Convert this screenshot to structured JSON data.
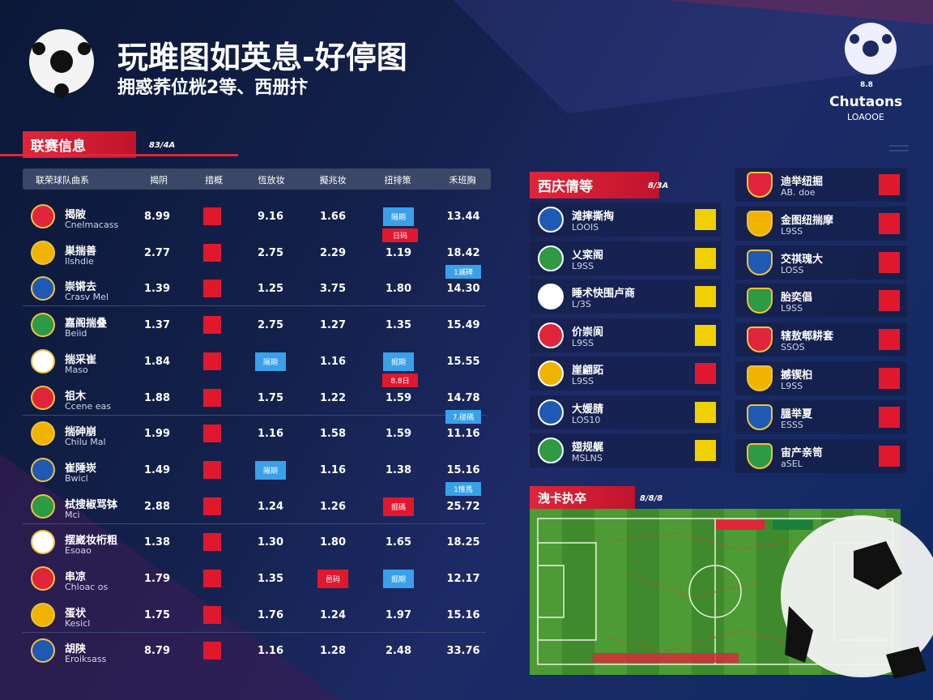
{
  "header": {
    "title": "玩雎图如英息-好停图",
    "subtitle": "拥惑荞位桄2等、西册抃"
  },
  "logo": {
    "badge": "8.8",
    "name": "Chutaons",
    "sub": "LOAOOE"
  },
  "league": {
    "title": "联赛信息",
    "tag": "83/4A",
    "columns": [
      "联荣球队曲系",
      "揭阴",
      "措概",
      "恆放妆",
      "擬兆妆",
      "扭排策",
      "禾班胸"
    ],
    "rows": [
      {
        "name": "揭陂",
        "sub": "Cnelmacass",
        "cells": [
          "8.99",
          "9.16",
          "1.66",
          {
            "tag": "陽期",
            "tone": "blue"
          },
          "13.44"
        ],
        "note": {
          "text": "日码",
          "tone": "red"
        }
      },
      {
        "name": "巣揣善",
        "sub": "Ilshdie",
        "cells": [
          "2.77",
          "2.75",
          "2.29",
          "1.19",
          "18.42"
        ],
        "note": {
          "text": "1滅碑",
          "tone": "blue"
        }
      },
      {
        "name": "崇锵去",
        "sub": "Crasv Mel",
        "cells": [
          "1.39",
          "1.25",
          "3.75",
          "1.80",
          "14.30"
        ]
      },
      {
        "name": "嘉阁揣叠",
        "sub": "Beiid",
        "cells": [
          "1.37",
          "2.75",
          "1.27",
          "1.35",
          "15.49"
        ]
      },
      {
        "name": "揣采崔",
        "sub": "Maso",
        "cells": [
          "1.84",
          {
            "tag": "陽期",
            "tone": "blue"
          },
          "1.16",
          {
            "tag": "掘期",
            "tone": "blue"
          },
          "15.55"
        ],
        "note": {
          "text": "8.8日",
          "tone": "red"
        }
      },
      {
        "name": "祖木",
        "sub": "Ccene eas",
        "cells": [
          "1.88",
          "1.75",
          "1.22",
          "1.59",
          "14.78"
        ],
        "note": {
          "text": "7.碰碼",
          "tone": "blue"
        }
      },
      {
        "name": "揣砷崩",
        "sub": "Chilu Mal",
        "cells": [
          "1.99",
          "1.16",
          "1.58",
          "1.59",
          "11.16"
        ]
      },
      {
        "name": "崔陲崁",
        "sub": "Bwicl",
        "cells": [
          "1.49",
          {
            "tag": "陽期",
            "tone": "blue"
          },
          "1.16",
          "1.38",
          "15.16"
        ],
        "note": {
          "text": "1惟馬",
          "tone": "blue"
        }
      },
      {
        "name": "栻搜椒骂钵",
        "sub": "Mci",
        "cells": [
          "2.88",
          "1.24",
          "1.26",
          {
            "tag": "掘碼",
            "tone": "red"
          },
          "25.72"
        ]
      },
      {
        "name": "摆崴妆桁粗",
        "sub": "Esoao",
        "cells": [
          "1.38",
          "1.30",
          "1.80",
          "1.65",
          "18.25"
        ]
      },
      {
        "name": "串凉",
        "sub": "Chloac os",
        "cells": [
          "1.79",
          "1.35",
          {
            "tag": "邑码",
            "tone": "red"
          },
          {
            "tag": "掘期",
            "tone": "blue"
          },
          "12.17"
        ]
      },
      {
        "name": "蛋状",
        "sub": "Kesicl",
        "cells": [
          "1.75",
          "1.76",
          "1.24",
          "1.97",
          "15.16"
        ]
      },
      {
        "name": "胡陕",
        "sub": "Eroiksass",
        "cells": [
          "8.79",
          "1.16",
          "1.28",
          "2.48",
          "33.76"
        ]
      }
    ]
  },
  "teams": {
    "title": "西庆倩等",
    "tag": "8/3A",
    "rows": [
      {
        "name": "滩摔撕掏",
        "sub": "LOOIS"
      },
      {
        "name": "乂寀阁",
        "sub": "L9SS"
      },
      {
        "name": "睡术快围卢商",
        "sub": "L/3S"
      },
      {
        "name": "价崇阆",
        "sub": "L9SS"
      },
      {
        "name": "崖翩跖",
        "sub": "L9SS"
      },
      {
        "name": "大媛腈",
        "sub": "LOS10"
      },
      {
        "name": "翅规艉",
        "sub": "MSLNS"
      }
    ]
  },
  "clubs": {
    "rows": [
      {
        "name": "迪举纽掘",
        "sub": "AB. doe"
      },
      {
        "name": "金图纽揣摩",
        "sub": "L9SS"
      },
      {
        "name": "交祺瑰大",
        "sub": "LOSS"
      },
      {
        "name": "胎奕倡",
        "sub": "L9SS"
      },
      {
        "name": "辖敖郫耕套",
        "sub": "SSOS"
      },
      {
        "name": "撼锲桕",
        "sub": "L9SS"
      },
      {
        "name": "膃举夏",
        "sub": "ESSS"
      },
      {
        "name": "宙产亲笥",
        "sub": "aSEL"
      }
    ]
  },
  "pitch": {
    "title": "洩卡执卒",
    "tag": "8/8/8"
  }
}
